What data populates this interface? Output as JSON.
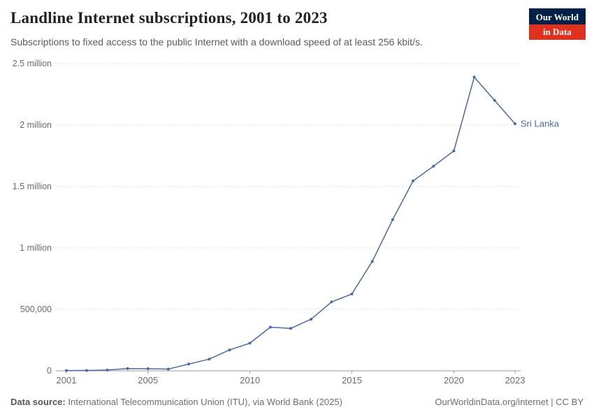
{
  "header": {
    "title": "Landline Internet subscriptions, 2001 to 2023",
    "subtitle": "Subscriptions to fixed access to the public Internet with a download speed of at least 256 kbit/s.",
    "logo": {
      "line1": "Our World",
      "line2": "in Data",
      "navy": "#002147",
      "red": "#e0301e"
    }
  },
  "footer": {
    "source_label": "Data source:",
    "source_text": " International Telecommunication Union (ITU), via World Bank (2025)",
    "right_text": "OurWorldinData.org/internet | CC BY"
  },
  "chart_data": {
    "type": "line",
    "title": "Landline Internet subscriptions, 2001 to 2023",
    "x": [
      2001,
      2002,
      2003,
      2004,
      2005,
      2006,
      2007,
      2008,
      2009,
      2010,
      2011,
      2012,
      2013,
      2014,
      2015,
      2016,
      2017,
      2018,
      2019,
      2020,
      2021,
      2022,
      2023
    ],
    "series": [
      {
        "name": "Sri Lanka",
        "color": "#4c6a9e",
        "values": [
          2000,
          3000,
          6000,
          18000,
          17000,
          14000,
          55000,
          95000,
          170000,
          225000,
          355000,
          345000,
          420000,
          560000,
          625000,
          890000,
          1230000,
          1545000,
          1665000,
          1790000,
          2390000,
          2200000,
          2010000
        ]
      }
    ],
    "xlabel": "",
    "ylabel": "",
    "xlim": [
      2001,
      2023
    ],
    "ylim": [
      0,
      2500000
    ],
    "yticks": [
      {
        "value": 0,
        "label": "0"
      },
      {
        "value": 500000,
        "label": "500,000"
      },
      {
        "value": 1000000,
        "label": "1 million"
      },
      {
        "value": 1500000,
        "label": "1.5 million"
      },
      {
        "value": 2000000,
        "label": "2 million"
      },
      {
        "value": 2500000,
        "label": "2.5 million"
      }
    ],
    "xticks": [
      {
        "value": 2001,
        "label": "2001"
      },
      {
        "value": 2005,
        "label": "2005"
      },
      {
        "value": 2010,
        "label": "2010"
      },
      {
        "value": 2015,
        "label": "2015"
      },
      {
        "value": 2020,
        "label": "2020"
      },
      {
        "value": 2023,
        "label": "2023"
      }
    ],
    "grid": "horizontal-dashed",
    "legend_position": "end-of-line-label"
  }
}
